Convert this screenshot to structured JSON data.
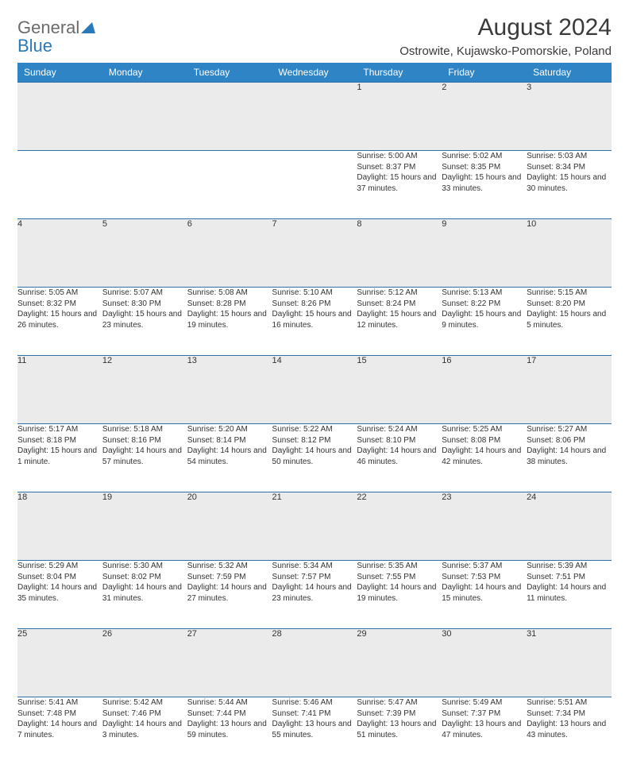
{
  "logo": {
    "text1": "General",
    "text2": "Blue"
  },
  "title": "August 2024",
  "location": "Ostrowite, Kujawsko-Pomorskie, Poland",
  "colors": {
    "header_bg": "#2f84c6",
    "header_text": "#ffffff",
    "daynum_bg": "#ebebeb",
    "border": "#2f6fa8",
    "logo_gray": "#6b6b6b",
    "logo_blue": "#2a7ab9",
    "text": "#333333"
  },
  "columns": [
    "Sunday",
    "Monday",
    "Tuesday",
    "Wednesday",
    "Thursday",
    "Friday",
    "Saturday"
  ],
  "weeks": [
    [
      null,
      null,
      null,
      null,
      {
        "n": "1",
        "sunrise": "5:00 AM",
        "sunset": "8:37 PM",
        "daylight": "15 hours and 37 minutes."
      },
      {
        "n": "2",
        "sunrise": "5:02 AM",
        "sunset": "8:35 PM",
        "daylight": "15 hours and 33 minutes."
      },
      {
        "n": "3",
        "sunrise": "5:03 AM",
        "sunset": "8:34 PM",
        "daylight": "15 hours and 30 minutes."
      }
    ],
    [
      {
        "n": "4",
        "sunrise": "5:05 AM",
        "sunset": "8:32 PM",
        "daylight": "15 hours and 26 minutes."
      },
      {
        "n": "5",
        "sunrise": "5:07 AM",
        "sunset": "8:30 PM",
        "daylight": "15 hours and 23 minutes."
      },
      {
        "n": "6",
        "sunrise": "5:08 AM",
        "sunset": "8:28 PM",
        "daylight": "15 hours and 19 minutes."
      },
      {
        "n": "7",
        "sunrise": "5:10 AM",
        "sunset": "8:26 PM",
        "daylight": "15 hours and 16 minutes."
      },
      {
        "n": "8",
        "sunrise": "5:12 AM",
        "sunset": "8:24 PM",
        "daylight": "15 hours and 12 minutes."
      },
      {
        "n": "9",
        "sunrise": "5:13 AM",
        "sunset": "8:22 PM",
        "daylight": "15 hours and 9 minutes."
      },
      {
        "n": "10",
        "sunrise": "5:15 AM",
        "sunset": "8:20 PM",
        "daylight": "15 hours and 5 minutes."
      }
    ],
    [
      {
        "n": "11",
        "sunrise": "5:17 AM",
        "sunset": "8:18 PM",
        "daylight": "15 hours and 1 minute."
      },
      {
        "n": "12",
        "sunrise": "5:18 AM",
        "sunset": "8:16 PM",
        "daylight": "14 hours and 57 minutes."
      },
      {
        "n": "13",
        "sunrise": "5:20 AM",
        "sunset": "8:14 PM",
        "daylight": "14 hours and 54 minutes."
      },
      {
        "n": "14",
        "sunrise": "5:22 AM",
        "sunset": "8:12 PM",
        "daylight": "14 hours and 50 minutes."
      },
      {
        "n": "15",
        "sunrise": "5:24 AM",
        "sunset": "8:10 PM",
        "daylight": "14 hours and 46 minutes."
      },
      {
        "n": "16",
        "sunrise": "5:25 AM",
        "sunset": "8:08 PM",
        "daylight": "14 hours and 42 minutes."
      },
      {
        "n": "17",
        "sunrise": "5:27 AM",
        "sunset": "8:06 PM",
        "daylight": "14 hours and 38 minutes."
      }
    ],
    [
      {
        "n": "18",
        "sunrise": "5:29 AM",
        "sunset": "8:04 PM",
        "daylight": "14 hours and 35 minutes."
      },
      {
        "n": "19",
        "sunrise": "5:30 AM",
        "sunset": "8:02 PM",
        "daylight": "14 hours and 31 minutes."
      },
      {
        "n": "20",
        "sunrise": "5:32 AM",
        "sunset": "7:59 PM",
        "daylight": "14 hours and 27 minutes."
      },
      {
        "n": "21",
        "sunrise": "5:34 AM",
        "sunset": "7:57 PM",
        "daylight": "14 hours and 23 minutes."
      },
      {
        "n": "22",
        "sunrise": "5:35 AM",
        "sunset": "7:55 PM",
        "daylight": "14 hours and 19 minutes."
      },
      {
        "n": "23",
        "sunrise": "5:37 AM",
        "sunset": "7:53 PM",
        "daylight": "14 hours and 15 minutes."
      },
      {
        "n": "24",
        "sunrise": "5:39 AM",
        "sunset": "7:51 PM",
        "daylight": "14 hours and 11 minutes."
      }
    ],
    [
      {
        "n": "25",
        "sunrise": "5:41 AM",
        "sunset": "7:48 PM",
        "daylight": "14 hours and 7 minutes."
      },
      {
        "n": "26",
        "sunrise": "5:42 AM",
        "sunset": "7:46 PM",
        "daylight": "14 hours and 3 minutes."
      },
      {
        "n": "27",
        "sunrise": "5:44 AM",
        "sunset": "7:44 PM",
        "daylight": "13 hours and 59 minutes."
      },
      {
        "n": "28",
        "sunrise": "5:46 AM",
        "sunset": "7:41 PM",
        "daylight": "13 hours and 55 minutes."
      },
      {
        "n": "29",
        "sunrise": "5:47 AM",
        "sunset": "7:39 PM",
        "daylight": "13 hours and 51 minutes."
      },
      {
        "n": "30",
        "sunrise": "5:49 AM",
        "sunset": "7:37 PM",
        "daylight": "13 hours and 47 minutes."
      },
      {
        "n": "31",
        "sunrise": "5:51 AM",
        "sunset": "7:34 PM",
        "daylight": "13 hours and 43 minutes."
      }
    ]
  ],
  "labels": {
    "sunrise": "Sunrise:",
    "sunset": "Sunset:",
    "daylight": "Daylight:"
  }
}
